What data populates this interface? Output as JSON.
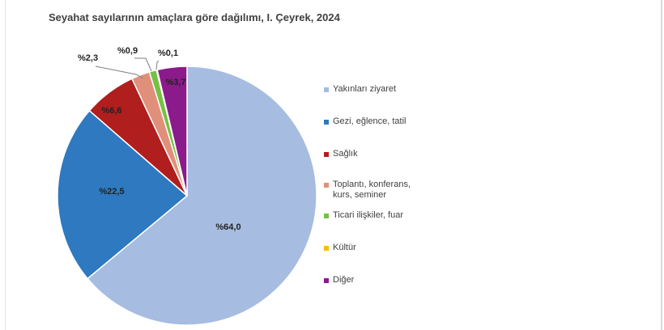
{
  "chart_data": {
    "type": "pie",
    "title": "Seyahat sayılarının amaçlara göre dağılımı, I. Çeyrek, 2024",
    "legend_position": "right",
    "slices": [
      {
        "name": "Yakınları ziyaret",
        "value": 64.0,
        "label": "%64,0",
        "color": "#a6bce0"
      },
      {
        "name": "Gezi, eğlence, tatil",
        "value": 22.5,
        "label": "%22,5",
        "color": "#2e79c0"
      },
      {
        "name": "Sağlık",
        "value": 6.6,
        "label": "%6,6",
        "color": "#b01e1e"
      },
      {
        "name": "Toplantı, konferans, kurs, seminer",
        "value": 2.3,
        "label": "%2,3",
        "color": "#e0907a"
      },
      {
        "name": "Ticari ilişkiler, fuar",
        "value": 0.9,
        "label": "%0,9",
        "color": "#76c043"
      },
      {
        "name": "Kültür",
        "value": 0.1,
        "label": "%0,1",
        "color": "#f5c000"
      },
      {
        "name": "Diğer",
        "value": 3.7,
        "label": "%3,7",
        "color": "#8b1a8b"
      }
    ]
  },
  "legend": [
    {
      "lines": [
        "Yakınları ziyaret"
      ]
    },
    {
      "lines": [
        "Gezi, eğlence, tatil"
      ]
    },
    {
      "lines": [
        "Sağlık"
      ]
    },
    {
      "lines": [
        "Toplantı, konferans,",
        "kurs, seminer"
      ]
    },
    {
      "lines": [
        "Ticari ilişkiler, fuar"
      ]
    },
    {
      "lines": [
        "Kültür"
      ]
    },
    {
      "lines": [
        "Diğer"
      ]
    }
  ]
}
